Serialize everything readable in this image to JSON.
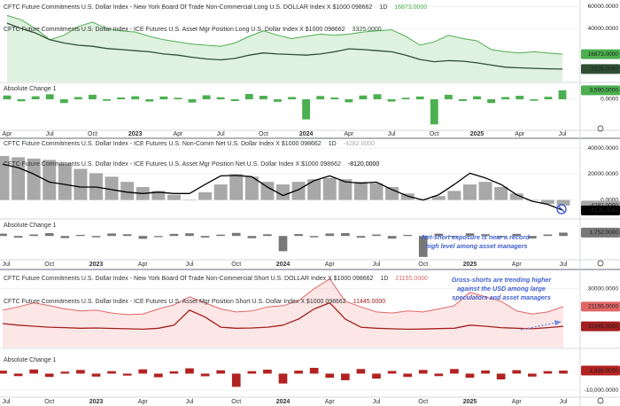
{
  "chart_data": [
    {
      "type": "area",
      "categories": [
        "Apr",
        null,
        null,
        "Jul",
        null,
        null,
        "Oct",
        null,
        null,
        "2023",
        null,
        null,
        "Apr",
        null,
        null,
        "Jul",
        null,
        null,
        "Oct",
        null,
        null,
        "2024",
        null,
        null,
        "Apr",
        null,
        null,
        "Jul",
        null,
        null,
        "Oct",
        null,
        null,
        "2025",
        null,
        null,
        "Apr",
        null,
        null,
        "Jul"
      ],
      "ylim": [
        -8000,
        66000
      ],
      "yticks": [
        {
          "value": 60000,
          "label": "60000.0000"
        },
        {
          "value": 40000,
          "label": "40000.0000"
        }
      ],
      "grid": true,
      "series": [
        {
          "name": "CFTC Future Commitments U.S. Dollar Index - New York Board Of Trade Non-Commercial Long U.S. DOLLAR Index X $1000 098662",
          "interval": "1D",
          "style": "area",
          "color": "#4caf50",
          "fill": "rgba(76,175,80,0.18)",
          "values": [
            52000,
            48000,
            40000,
            30000,
            34000,
            42000,
            46000,
            40000,
            38000,
            37000,
            33000,
            30000,
            28000,
            26000,
            25000,
            24000,
            27000,
            33000,
            38000,
            34000,
            31000,
            33000,
            35000,
            34000,
            35000,
            37000,
            38000,
            39000,
            33000,
            25000,
            28000,
            34000,
            31000,
            29000,
            21000,
            19000,
            18000,
            19000,
            18000,
            16873
          ],
          "last": {
            "value": 16873,
            "label": "16873.0000"
          }
        },
        {
          "name": "CFTC Future Commitments U.S. Dollar Index - ICE Futures U.S. Asset Mgr Position Long U.S. Dollar Index X $1000 098662",
          "style": "line",
          "color": "#2f4f34",
          "values": [
            45000,
            40000,
            36000,
            30000,
            27000,
            25000,
            24000,
            22000,
            21000,
            20000,
            19000,
            17000,
            16000,
            14000,
            12500,
            11700,
            13000,
            16000,
            18000,
            17000,
            16500,
            16000,
            17000,
            19000,
            21700,
            21000,
            20000,
            19000,
            16000,
            12000,
            10000,
            11000,
            10500,
            9000,
            7000,
            5000,
            4500,
            4000,
            3600,
            3325
          ],
          "last": {
            "value": 3325,
            "label": "3325.0000"
          }
        }
      ],
      "change": {
        "type": "bar",
        "title": "Absolute Change 1",
        "color": "#4caf50",
        "ylim": [
          -12000,
          6000
        ],
        "yticks": [
          {
            "value": 0,
            "label": "0.0000"
          }
        ],
        "values": [
          1500,
          -800,
          1200,
          2000,
          -1500,
          900,
          1800,
          -600,
          700,
          1200,
          -900,
          1100,
          600,
          -1300,
          1600,
          800,
          -700,
          2100,
          1400,
          -1000,
          900,
          -8000,
          1300,
          700,
          -1200,
          1500,
          2000,
          -900,
          600,
          1100,
          -10000,
          1800,
          -700,
          1200,
          -1500,
          900,
          1400,
          -600,
          1000,
          3590
        ],
        "last": {
          "value": 3590,
          "label": "3,590.0000"
        }
      }
    },
    {
      "type": "area",
      "categories": [
        "Jul",
        null,
        null,
        "Oct",
        null,
        null,
        "2023",
        null,
        null,
        "Apr",
        null,
        null,
        "Jul",
        null,
        null,
        "Oct",
        null,
        null,
        "2024",
        null,
        null,
        "Apr",
        null,
        null,
        "Jul",
        null,
        null,
        "Oct",
        null,
        null,
        "2025",
        null,
        null,
        "Apr",
        null,
        null,
        "Jul"
      ],
      "ylim": [
        -14000,
        47000
      ],
      "yticks": [
        {
          "value": 40000,
          "label": "40000.0000"
        },
        {
          "value": 20000,
          "label": "20000.0000"
        },
        {
          "value": 0,
          "label": "0.0000"
        }
      ],
      "grid": true,
      "series": [
        {
          "name": "CFTC Future Commitments U.S. Dollar Index - ICE Futures U.S. Non-Comm Net U.S. Dollar Index X $1000 098662",
          "interval": "1D",
          "style": "columns",
          "color": "#a8a8a8",
          "values": [
            34000,
            33000,
            32000,
            31000,
            28000,
            24000,
            20700,
            18000,
            14000,
            10000,
            7000,
            4000,
            0,
            6000,
            12000,
            20000,
            18000,
            14000,
            12000,
            14000,
            16000,
            17000,
            16000,
            14000,
            13000,
            10000,
            5000,
            0,
            3000,
            7000,
            12000,
            14000,
            10000,
            5000,
            0,
            -3000,
            -4282
          ],
          "last": {
            "value": -4282,
            "label": "-4282.0000"
          }
        },
        {
          "name": "CFTC Future Commitments U.S. Dollar Index - ICE Futures U.S. Asset Mgr Position Net U.S. Dollar Index X $1000 098662",
          "style": "line",
          "color": "#000000",
          "values": [
            27600,
            25000,
            20000,
            13800,
            12000,
            10000,
            10000,
            8000,
            6000,
            5000,
            6000,
            5000,
            5000,
            12000,
            18600,
            19000,
            18000,
            10000,
            3400,
            8000,
            15000,
            18600,
            14000,
            13000,
            13800,
            8000,
            3000,
            0,
            4000,
            12000,
            20700,
            17000,
            12000,
            4000,
            -1000,
            -3400,
            -8120
          ],
          "last": {
            "value": -8120,
            "label": "-8120.0000"
          }
        }
      ],
      "annotation": [
        "Net-short exposure is near a record-",
        "high level among asset managers"
      ],
      "change": {
        "type": "bar",
        "title": "Absolute Change 1",
        "color": "#787878",
        "ylim": [
          -12000,
          8000
        ],
        "values": [
          1200,
          -900,
          800,
          1500,
          -1100,
          600,
          -700,
          1300,
          900,
          -1500,
          -600,
          1100,
          1400,
          -800,
          700,
          1600,
          -1200,
          900,
          -8000,
          1000,
          -700,
          1300,
          1500,
          -900,
          800,
          -1400,
          600,
          -11000,
          1200,
          -600,
          1400,
          900,
          -700,
          1100,
          -1300,
          800,
          1752
        ],
        "last": {
          "value": 1752,
          "label": "1,752.0000"
        }
      }
    },
    {
      "type": "area",
      "categories": [
        "Jul",
        null,
        null,
        "Oct",
        null,
        null,
        "2023",
        null,
        null,
        "Apr",
        null,
        null,
        "Jul",
        null,
        null,
        "Oct",
        null,
        null,
        "2024",
        null,
        null,
        "Apr",
        null,
        null,
        "Jul",
        null,
        null,
        "Oct",
        null,
        null,
        "2025",
        null,
        null,
        "Apr",
        null,
        null,
        "Jul"
      ],
      "ylim": [
        1000,
        39000
      ],
      "yticks": [
        {
          "value": 30000,
          "label": "30000.0000"
        }
      ],
      "grid": true,
      "series": [
        {
          "name": "CFTC Future Commitments U.S. Dollar Index - New York Board Of Trade Non-Commercial Short U.S. DOLLAR Index X $1000 098662",
          "interval": "1D",
          "style": "area",
          "color": "#e06666",
          "fill": "rgba(239,83,80,0.14)",
          "values": [
            19400,
            21000,
            23000,
            21600,
            20000,
            19000,
            19400,
            18000,
            17200,
            17500,
            20000,
            22000,
            26000,
            23000,
            20000,
            18500,
            19000,
            21000,
            21600,
            24000,
            30000,
            34800,
            23800,
            21000,
            18500,
            18000,
            19000,
            18500,
            20000,
            21600,
            28200,
            26000,
            23800,
            19000,
            17500,
            18500,
            21155
          ],
          "last": {
            "value": 21155,
            "label": "21155.0000"
          }
        },
        {
          "name": "CFTC Future Commitments U.S. Dollar Index - ICE Futures U.S. Asset Mgr Position Short U.S. Dollar Index X $1000 098662",
          "style": "line",
          "color": "#a31f1f",
          "values": [
            12800,
            12000,
            11500,
            11000,
            10800,
            10500,
            10600,
            10400,
            10200,
            10000,
            10500,
            12000,
            19400,
            16000,
            11000,
            10500,
            10600,
            11000,
            12000,
            15000,
            20000,
            23000,
            15000,
            11000,
            10500,
            10200,
            10000,
            10100,
            10300,
            10500,
            12000,
            11500,
            10800,
            10500,
            10200,
            10800,
            11445
          ],
          "last": {
            "value": 11445,
            "label": "11445.0000"
          }
        }
      ],
      "annotation": [
        "Gross-shorts are trending higher",
        "against the USD among large",
        "speculators and asset managers"
      ],
      "change": {
        "type": "bar",
        "title": "Absolute Change 1",
        "color": "#b22222",
        "ylim": [
          -13700,
          14200
        ],
        "yticks": [
          {
            "value": -10000,
            "label": "-10,000.0000"
          }
        ],
        "values": [
          1800,
          -1500,
          2500,
          -2000,
          1200,
          2200,
          -1800,
          1500,
          -1200,
          2600,
          -2200,
          1400,
          3200,
          -1600,
          2000,
          -8000,
          1500,
          2400,
          -6000,
          1800,
          3500,
          -2500,
          -4000,
          2800,
          -3000,
          1600,
          -2000,
          2200,
          -1500,
          2800,
          -2500,
          1900,
          -3500,
          2100,
          -1800,
          1500,
          1838
        ],
        "last": {
          "value": 1838,
          "label": "1,838.0000"
        }
      }
    }
  ]
}
